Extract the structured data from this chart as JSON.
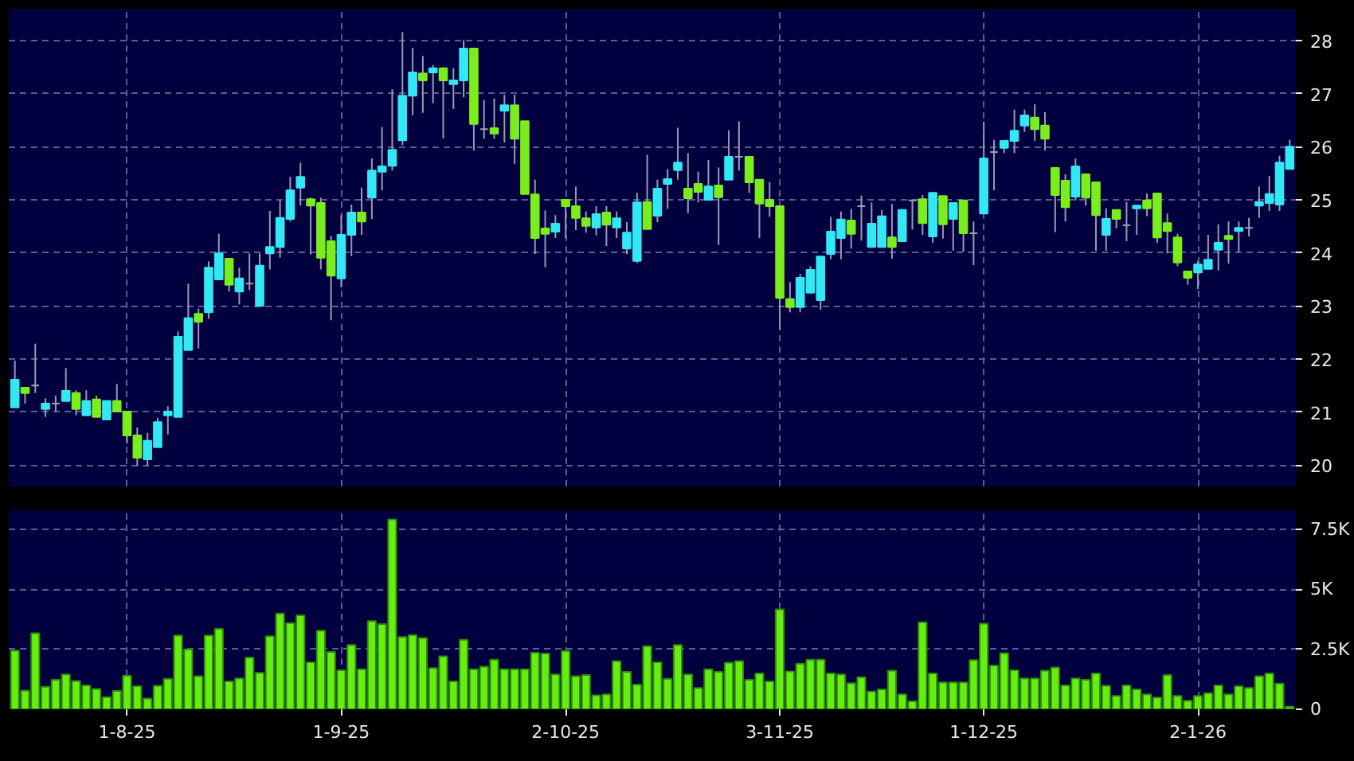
{
  "chart_data": [
    {
      "type": "candlestick",
      "categories": [
        null,
        null,
        null,
        null,
        null,
        null,
        null,
        null,
        null,
        null,
        null,
        null,
        null,
        null,
        null,
        null,
        null,
        null,
        null,
        null,
        null,
        null,
        null,
        null,
        null,
        null,
        null,
        null,
        null,
        null,
        null,
        null,
        null,
        null,
        null,
        null,
        null,
        null,
        null,
        null,
        null,
        null,
        null,
        null,
        null,
        null,
        null,
        null,
        null,
        null,
        null,
        null,
        null,
        null,
        null,
        null,
        null,
        null,
        null,
        null,
        null,
        null,
        null,
        null,
        null,
        null,
        null,
        null,
        null,
        null,
        null,
        null,
        null,
        null,
        null,
        null,
        null,
        null,
        null,
        null,
        null,
        null,
        null,
        null,
        null,
        null,
        null,
        null,
        null,
        null,
        null,
        null,
        null,
        null,
        null,
        null,
        null,
        null,
        null,
        null,
        null,
        null,
        null,
        null,
        null,
        null,
        null,
        null,
        null,
        null,
        null,
        null,
        null,
        null,
        null,
        null,
        null,
        null,
        null,
        null,
        null,
        null,
        null,
        null,
        null,
        null
      ],
      "ohlc": [
        [
          21.09,
          21.97,
          21.09,
          21.61
        ],
        [
          21.46,
          21.46,
          21.16,
          21.36
        ],
        [
          21.5,
          22.29,
          21.36,
          21.5
        ],
        [
          21.06,
          21.26,
          20.91,
          21.16
        ],
        [
          21.16,
          21.31,
          21.01,
          21.16
        ],
        [
          21.21,
          21.83,
          21.21,
          21.4
        ],
        [
          21.36,
          21.41,
          20.94,
          21.06
        ],
        [
          20.94,
          21.41,
          20.94,
          21.21
        ],
        [
          21.24,
          21.31,
          20.91,
          20.91
        ],
        [
          20.86,
          21.21,
          20.86,
          21.21
        ],
        [
          21.21,
          21.53,
          21.01,
          21.01
        ],
        [
          21.01,
          21.01,
          20.41,
          20.56
        ],
        [
          20.56,
          20.71,
          19.99,
          20.14
        ],
        [
          20.11,
          20.61,
          19.99,
          20.46
        ],
        [
          20.34,
          20.89,
          20.34,
          20.81
        ],
        [
          20.94,
          21.11,
          20.58,
          21.01
        ],
        [
          20.91,
          22.52,
          20.91,
          22.42
        ],
        [
          22.17,
          23.42,
          22.17,
          22.77
        ],
        [
          22.85,
          22.95,
          22.2,
          22.7
        ],
        [
          22.88,
          23.84,
          22.76,
          23.72
        ],
        [
          23.5,
          24.36,
          23.5,
          23.99
        ],
        [
          23.89,
          23.89,
          23.27,
          23.4
        ],
        [
          23.27,
          23.72,
          23.03,
          23.52
        ],
        [
          23.42,
          23.99,
          23.3,
          23.42
        ],
        [
          23.0,
          23.99,
          23.0,
          23.76
        ],
        [
          23.99,
          24.79,
          23.69,
          24.11
        ],
        [
          24.11,
          24.99,
          23.91,
          24.66
        ],
        [
          24.64,
          25.43,
          24.59,
          25.18
        ],
        [
          25.23,
          25.7,
          24.89,
          25.43
        ],
        [
          25.01,
          25.04,
          23.97,
          24.89
        ],
        [
          24.94,
          25.04,
          23.69,
          23.91
        ],
        [
          24.22,
          24.32,
          22.73,
          23.57
        ],
        [
          23.52,
          24.71,
          23.35,
          24.34
        ],
        [
          24.34,
          24.91,
          23.94,
          24.76
        ],
        [
          24.76,
          25.23,
          24.34,
          24.59
        ],
        [
          25.04,
          25.78,
          24.64,
          25.55
        ],
        [
          25.53,
          26.37,
          25.18,
          25.63
        ],
        [
          25.64,
          27.08,
          25.55,
          25.94
        ],
        [
          26.12,
          28.16,
          26.03,
          26.96
        ],
        [
          26.96,
          27.86,
          26.59,
          27.4
        ],
        [
          27.38,
          27.71,
          26.64,
          27.25
        ],
        [
          27.4,
          27.54,
          26.82,
          27.48
        ],
        [
          27.48,
          27.5,
          26.16,
          27.25
        ],
        [
          27.18,
          27.48,
          26.71,
          27.25
        ],
        [
          27.25,
          28.01,
          26.93,
          27.85
        ],
        [
          27.85,
          27.85,
          25.93,
          26.43
        ],
        [
          26.33,
          26.88,
          26.15,
          26.33
        ],
        [
          26.35,
          26.91,
          26.15,
          26.25
        ],
        [
          26.68,
          26.98,
          26.08,
          26.78
        ],
        [
          26.78,
          26.98,
          25.68,
          26.15
        ],
        [
          26.48,
          26.48,
          25.11,
          25.11
        ],
        [
          25.1,
          25.38,
          23.98,
          24.28
        ],
        [
          24.46,
          24.8,
          23.73,
          24.36
        ],
        [
          24.4,
          24.71,
          24.28,
          24.55
        ],
        [
          25.0,
          25.0,
          24.28,
          24.88
        ],
        [
          24.88,
          25.25,
          24.43,
          24.66
        ],
        [
          24.65,
          24.78,
          24.38,
          24.51
        ],
        [
          24.48,
          24.88,
          24.33,
          24.73
        ],
        [
          24.76,
          24.88,
          24.13,
          24.53
        ],
        [
          24.48,
          24.78,
          24.28,
          24.65
        ],
        [
          24.08,
          24.58,
          23.98,
          24.38
        ],
        [
          23.85,
          25.13,
          23.81,
          24.95
        ],
        [
          24.96,
          25.85,
          24.45,
          24.45
        ],
        [
          24.7,
          25.38,
          24.58,
          25.21
        ],
        [
          25.3,
          25.58,
          24.83,
          25.39
        ],
        [
          25.56,
          26.36,
          25.38,
          25.7
        ],
        [
          25.21,
          25.88,
          24.75,
          25.03
        ],
        [
          25.3,
          25.53,
          24.95,
          25.15
        ],
        [
          25.0,
          25.75,
          25.0,
          25.25
        ],
        [
          25.27,
          25.61,
          24.15,
          25.05
        ],
        [
          25.38,
          26.31,
          25.38,
          25.81
        ],
        [
          25.81,
          26.48,
          25.55,
          25.81
        ],
        [
          25.81,
          25.81,
          25.13,
          25.33
        ],
        [
          25.38,
          25.38,
          24.28,
          24.93
        ],
        [
          25.0,
          25.33,
          24.68,
          24.88
        ],
        [
          24.88,
          24.88,
          22.55,
          23.15
        ],
        [
          23.13,
          23.45,
          22.88,
          22.98
        ],
        [
          22.98,
          23.6,
          22.88,
          23.53
        ],
        [
          23.25,
          23.75,
          23.25,
          23.68
        ],
        [
          23.11,
          23.93,
          22.93,
          23.93
        ],
        [
          23.98,
          24.68,
          23.88,
          24.4
        ],
        [
          24.28,
          24.78,
          23.88,
          24.63
        ],
        [
          24.61,
          24.83,
          24.08,
          24.36
        ],
        [
          24.88,
          25.08,
          24.23,
          24.88
        ],
        [
          24.11,
          24.95,
          24.11,
          24.55
        ],
        [
          24.11,
          24.81,
          24.11,
          24.69
        ],
        [
          24.29,
          24.92,
          23.89,
          24.11
        ],
        [
          24.22,
          24.81,
          24.22,
          24.81
        ],
        [
          24.99,
          24.99,
          24.44,
          24.99
        ],
        [
          25.01,
          25.09,
          24.34,
          24.56
        ],
        [
          24.31,
          25.13,
          24.19,
          25.13
        ],
        [
          25.07,
          25.07,
          24.27,
          24.54
        ],
        [
          24.64,
          24.94,
          24.04,
          24.94
        ],
        [
          24.99,
          24.99,
          24.02,
          24.37
        ],
        [
          24.37,
          24.59,
          23.77,
          24.37
        ],
        [
          24.74,
          26.47,
          24.74,
          25.78
        ],
        [
          25.9,
          26.13,
          25.18,
          25.9
        ],
        [
          25.98,
          26.11,
          25.88,
          26.11
        ],
        [
          26.11,
          26.7,
          25.88,
          26.3
        ],
        [
          26.4,
          26.7,
          26.28,
          26.59
        ],
        [
          26.55,
          26.8,
          26.11,
          26.33
        ],
        [
          26.4,
          26.65,
          25.93,
          26.15
        ],
        [
          25.6,
          25.6,
          24.39,
          25.09
        ],
        [
          25.36,
          25.48,
          24.59,
          24.86
        ],
        [
          25.06,
          25.78,
          24.99,
          25.63
        ],
        [
          25.48,
          25.48,
          24.89,
          25.04
        ],
        [
          25.33,
          25.33,
          24.04,
          24.71
        ],
        [
          24.34,
          24.84,
          24.04,
          24.64
        ],
        [
          24.81,
          24.81,
          24.46,
          24.64
        ],
        [
          24.52,
          24.96,
          24.22,
          24.52
        ],
        [
          24.84,
          24.89,
          24.34,
          24.89
        ],
        [
          24.99,
          25.12,
          24.69,
          24.84
        ],
        [
          25.12,
          25.12,
          24.19,
          24.29
        ],
        [
          24.56,
          24.74,
          23.99,
          24.41
        ],
        [
          24.29,
          24.36,
          23.75,
          23.82
        ],
        [
          23.65,
          23.65,
          23.4,
          23.53
        ],
        [
          23.63,
          23.85,
          23.32,
          23.78
        ],
        [
          23.7,
          24.34,
          23.7,
          23.87
        ],
        [
          24.06,
          24.54,
          23.67,
          24.19
        ],
        [
          24.32,
          24.59,
          23.8,
          24.26
        ],
        [
          24.41,
          24.59,
          24.02,
          24.47
        ],
        [
          24.47,
          24.66,
          24.31,
          24.47
        ],
        [
          24.89,
          25.25,
          24.66,
          24.96
        ],
        [
          24.94,
          25.45,
          24.79,
          25.11
        ],
        [
          24.91,
          25.83,
          24.79,
          25.7
        ],
        [
          25.58,
          26.13,
          25.58,
          26.0
        ]
      ],
      "colors": [
        "#33e8f5",
        "#7ced1c",
        "#a0a0b4",
        "#33e8f5",
        "#a0a0b4",
        "#33e8f5",
        "#7ced1c",
        "#33e8f5",
        "#7ced1c",
        "#33e8f5",
        "#7ced1c",
        "#7ced1c",
        "#7ced1c",
        "#33e8f5",
        "#33e8f5",
        "#33e8f5",
        "#33e8f5",
        "#33e8f5",
        "#7ced1c",
        "#33e8f5",
        "#33e8f5",
        "#7ced1c",
        "#33e8f5",
        "#a0a0b4",
        "#33e8f5",
        "#33e8f5",
        "#33e8f5",
        "#33e8f5",
        "#33e8f5",
        "#7ced1c",
        "#7ced1c",
        "#7ced1c",
        "#33e8f5",
        "#33e8f5",
        "#7ced1c",
        "#33e8f5",
        "#33e8f5",
        "#33e8f5",
        "#33e8f5",
        "#33e8f5",
        "#7ced1c",
        "#33e8f5",
        "#7ced1c",
        "#33e8f5",
        "#33e8f5",
        "#7ced1c",
        "#a0a0b4",
        "#7ced1c",
        "#33e8f5",
        "#7ced1c",
        "#7ced1c",
        "#7ced1c",
        "#7ced1c",
        "#33e8f5",
        "#7ced1c",
        "#7ced1c",
        "#7ced1c",
        "#33e8f5",
        "#7ced1c",
        "#33e8f5",
        "#33e8f5",
        "#33e8f5",
        "#7ced1c",
        "#33e8f5",
        "#33e8f5",
        "#33e8f5",
        "#7ced1c",
        "#7ced1c",
        "#33e8f5",
        "#7ced1c",
        "#33e8f5",
        "#a0a0b4",
        "#7ced1c",
        "#7ced1c",
        "#7ced1c",
        "#7ced1c",
        "#7ced1c",
        "#33e8f5",
        "#33e8f5",
        "#33e8f5",
        "#33e8f5",
        "#33e8f5",
        "#7ced1c",
        "#a0a0b4",
        "#33e8f5",
        "#33e8f5",
        "#7ced1c",
        "#33e8f5",
        "#a0a0b4",
        "#7ced1c",
        "#33e8f5",
        "#7ced1c",
        "#33e8f5",
        "#7ced1c",
        "#a0a0b4",
        "#33e8f5",
        "#a0a0b4",
        "#33e8f5",
        "#33e8f5",
        "#33e8f5",
        "#7ced1c",
        "#7ced1c",
        "#7ced1c",
        "#7ced1c",
        "#33e8f5",
        "#7ced1c",
        "#7ced1c",
        "#33e8f5",
        "#7ced1c",
        "#a0a0b4",
        "#33e8f5",
        "#7ced1c",
        "#7ced1c",
        "#7ced1c",
        "#7ced1c",
        "#7ced1c",
        "#33e8f5",
        "#33e8f5",
        "#33e8f5",
        "#7ced1c",
        "#33e8f5",
        "#a0a0b4",
        "#33e8f5",
        "#33e8f5",
        "#33e8f5",
        "#33e8f5"
      ],
      "ylim": [
        19.6,
        28.6
      ],
      "yticks": [
        20,
        21,
        22,
        23,
        24,
        25,
        26,
        27,
        28
      ],
      "grid": true,
      "tick_labels": "y"
    },
    {
      "type": "bar",
      "categories": [
        null,
        null,
        null,
        null,
        null,
        null,
        null,
        null,
        null,
        null,
        null,
        "1-8-25",
        null,
        null,
        null,
        null,
        null,
        null,
        null,
        null,
        null,
        null,
        null,
        null,
        null,
        null,
        null,
        null,
        null,
        null,
        null,
        null,
        "1-9-25",
        null,
        null,
        null,
        null,
        null,
        null,
        null,
        null,
        null,
        null,
        null,
        null,
        null,
        null,
        null,
        null,
        null,
        null,
        null,
        null,
        null,
        "2-10-25",
        null,
        null,
        null,
        null,
        null,
        null,
        null,
        null,
        null,
        null,
        null,
        null,
        null,
        null,
        null,
        null,
        null,
        null,
        null,
        null,
        "3-11-25",
        null,
        null,
        null,
        null,
        null,
        null,
        null,
        null,
        null,
        null,
        null,
        null,
        null,
        null,
        null,
        null,
        null,
        null,
        null,
        "1-12-25",
        null,
        null,
        null,
        null,
        null,
        null,
        null,
        null,
        null,
        null,
        null,
        null,
        null,
        null,
        null,
        null,
        null,
        null,
        null,
        null,
        "2-1-26",
        null,
        null,
        null,
        null,
        null,
        null,
        null,
        null,
        null
      ],
      "series": [
        {
          "color": "#66ee11",
          "values": [
            2450,
            780,
            3170,
            940,
            1230,
            1450,
            1180,
            1000,
            850,
            510,
            760,
            1400,
            960,
            450,
            980,
            1270,
            3080,
            2500,
            1380,
            3080,
            3350,
            1160,
            1290,
            2160,
            1520,
            3050,
            3990,
            3590,
            3920,
            1960,
            3280,
            2390,
            1630,
            2680,
            1670,
            3680,
            3550,
            7920,
            3010,
            3100,
            2970,
            1720,
            2210,
            1160,
            2900,
            1670,
            1780,
            2070,
            1670,
            1670,
            1670,
            2360,
            2320,
            1450,
            2430,
            1380,
            1430,
            580,
            620,
            2010,
            1560,
            1030,
            2630,
            1960,
            1270,
            2680,
            1450,
            890,
            1670,
            1560,
            1940,
            2010,
            1230,
            1490,
            1160,
            4170,
            1580,
            1900,
            2070,
            2070,
            1490,
            1450,
            1090,
            1340,
            740,
            830,
            1610,
            620,
            330,
            3630,
            1490,
            1120,
            1120,
            1120,
            2050,
            3570,
            1830,
            2340,
            1630,
            1290,
            1290,
            1610,
            1740,
            1000,
            1290,
            1230,
            1490,
            980,
            560,
            1000,
            830,
            620,
            490,
            1430,
            560,
            360,
            560,
            670,
            1000,
            620,
            960,
            890,
            1380,
            1490,
            1070,
            110
          ]
        }
      ],
      "ylim": [
        0,
        8300
      ],
      "yticks": [
        0,
        {
          "value": 2500,
          "label": "2.5K"
        },
        {
          "value": 5000,
          "label": "5K"
        },
        {
          "value": 7500,
          "label": "7.5K"
        }
      ],
      "grid": true
    }
  ]
}
